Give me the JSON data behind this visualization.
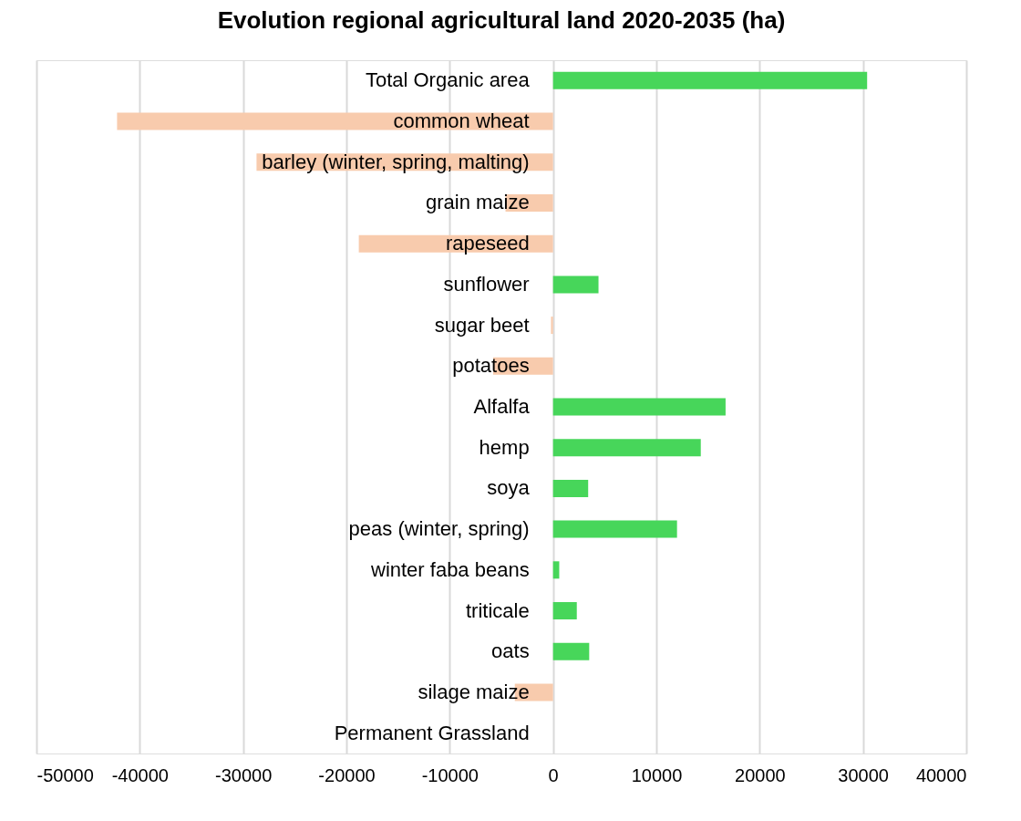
{
  "chart_data": {
    "type": "bar",
    "orientation": "horizontal",
    "title": "Evolution regional agricultural land 2020-2035 (ha)",
    "categories": [
      "Total Organic area",
      "common wheat",
      "barley (winter, spring, malting)",
      "grain maize",
      "rapeseed",
      "sunflower",
      "sugar beet",
      "potatoes",
      "Alfalfa",
      "hemp",
      "soya",
      "peas (winter, spring)",
      "winter faba beans",
      "triticale",
      "oats",
      "silage maize",
      "Permanent Grassland"
    ],
    "values": [
      30400,
      -42200,
      -28700,
      -4600,
      -18800,
      4400,
      -200,
      -5800,
      16700,
      14300,
      3400,
      12000,
      600,
      2300,
      3500,
      -3700,
      0
    ],
    "colors": [
      "#47d65a",
      "#f8cbad",
      "#f8cbad",
      "#f8cbad",
      "#f8cbad",
      "#47d65a",
      "#f8cbad",
      "#f8cbad",
      "#47d65a",
      "#47d65a",
      "#47d65a",
      "#47d65a",
      "#47d65a",
      "#47d65a",
      "#47d65a",
      "#f8cbad",
      "#f8cbad"
    ],
    "xlim": [
      -50000,
      40000
    ],
    "xticks": [
      -50000,
      -40000,
      -30000,
      -20000,
      -10000,
      0,
      10000,
      20000,
      30000,
      40000
    ],
    "grid": "x"
  }
}
